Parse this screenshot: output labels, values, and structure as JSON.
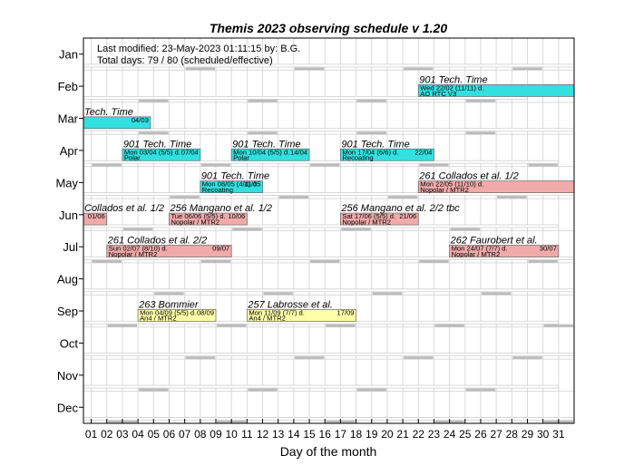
{
  "chart_data": {
    "type": "gantt",
    "title": "Themis 2023 observing schedule v 1.20",
    "xlabel": "Day of the month",
    "ylabel": "",
    "info_lines": [
      "Last modified: 23-May-2023 01:11:15 by: B.G.",
      "Total days: 79 / 80   (scheduled/effective)"
    ],
    "months": [
      "Jan",
      "Feb",
      "Mar",
      "Apr",
      "May",
      "Jun",
      "Jul",
      "Aug",
      "Sep",
      "Oct",
      "Nov",
      "Dec"
    ],
    "days": [
      "01",
      "02",
      "03",
      "04",
      "05",
      "06",
      "07",
      "08",
      "09",
      "10",
      "11",
      "12",
      "13",
      "14",
      "15",
      "16",
      "17",
      "18",
      "19",
      "20",
      "21",
      "22",
      "23",
      "24",
      "25",
      "26",
      "27",
      "28",
      "29",
      "30",
      "31"
    ],
    "xlim": [
      0.5,
      32
    ],
    "grid": true,
    "colors": {
      "tech": "#33e0e0",
      "observing": "#f0aaaa",
      "pending": "#ffffaa",
      "frame": "#000000",
      "grid": "#d9d9d9",
      "weekend": "#bcbcbc"
    },
    "bars": [
      {
        "month": 2,
        "start": 22,
        "end": 32,
        "kind": "tech",
        "title": "901 Tech. Time",
        "line1": "Wed 22/02 (11/11) d.",
        "line2": "AO RTC V3",
        "right": ""
      },
      {
        "month": 3,
        "start": 0.5,
        "end": 4.8,
        "kind": "tech",
        "title": "Tech. Time",
        "line1": "",
        "line2": "",
        "right": "04/03"
      },
      {
        "month": 4,
        "start": 3,
        "end": 8,
        "kind": "tech",
        "title": "901 Tech. Time",
        "line1": "Mon 03/04 (5/5) d.",
        "line2": "Polar",
        "right": "07/04"
      },
      {
        "month": 4,
        "start": 10,
        "end": 15,
        "kind": "tech",
        "title": "901 Tech. Time",
        "line1": "Mon 10/04 (5/5) d.",
        "line2": "Polar",
        "right": "14/04"
      },
      {
        "month": 4,
        "start": 17,
        "end": 23,
        "kind": "tech",
        "title": "901 Tech. Time",
        "line1": "Mon 17/04 (6/6) d.",
        "line2": "Recoating",
        "right": "22/04"
      },
      {
        "month": 5,
        "start": 8,
        "end": 12,
        "kind": "tech",
        "title": "901 Tech. Time",
        "line1": "Mon 08/05 (4/4) d.",
        "line2": "Recoating",
        "right": "11/05"
      },
      {
        "month": 5,
        "start": 22,
        "end": 32,
        "kind": "observing",
        "title": "261 Collados et al. 1/2",
        "line1": "Mon 22/05 (11/10) d.",
        "line2": "Nopolar / MTR2",
        "right": ""
      },
      {
        "month": 6,
        "start": 0.5,
        "end": 2,
        "kind": "observing",
        "title": "Collados et al. 1/2",
        "line1": "",
        "line2": "",
        "right": "01/06"
      },
      {
        "month": 6,
        "start": 6,
        "end": 11,
        "kind": "observing",
        "title": "256 Mangano et al. 1/2",
        "line1": "Tue 06/06 (5/5) d.",
        "line2": "Nopolar / MTR2",
        "right": "10/06"
      },
      {
        "month": 6,
        "start": 17,
        "end": 22,
        "kind": "observing",
        "title": "256 Mangano et al. 2/2 tbc",
        "line1": "Sat 17/06 (5/5) d.",
        "line2": "Nopolar / MTR2",
        "right": "21/06"
      },
      {
        "month": 7,
        "start": 2,
        "end": 10,
        "kind": "observing",
        "title": "261 Collados et al. 2/2",
        "line1": "Sun 02/07 (8/10) d.",
        "line2": "Nopolar / MTR2",
        "right": "09/07"
      },
      {
        "month": 7,
        "start": 24,
        "end": 31,
        "kind": "observing",
        "title": "262 Faurobert et al.",
        "line1": "Mon 24/07 (7/7) d.",
        "line2": "Nopolar / MTR2",
        "right": "30/07"
      },
      {
        "month": 9,
        "start": 4,
        "end": 9,
        "kind": "pending",
        "title": "263 Bommier",
        "line1": "Mon 04/09 (5/5) d.",
        "line2": "An4 / MTR2",
        "right": "08/09"
      },
      {
        "month": 9,
        "start": 11,
        "end": 18,
        "kind": "pending",
        "title": "257 Labrosse et al.",
        "line1": "Mon 11/09 (7/7) d.",
        "line2": "An4 / MTR2",
        "right": "17/09"
      }
    ]
  }
}
